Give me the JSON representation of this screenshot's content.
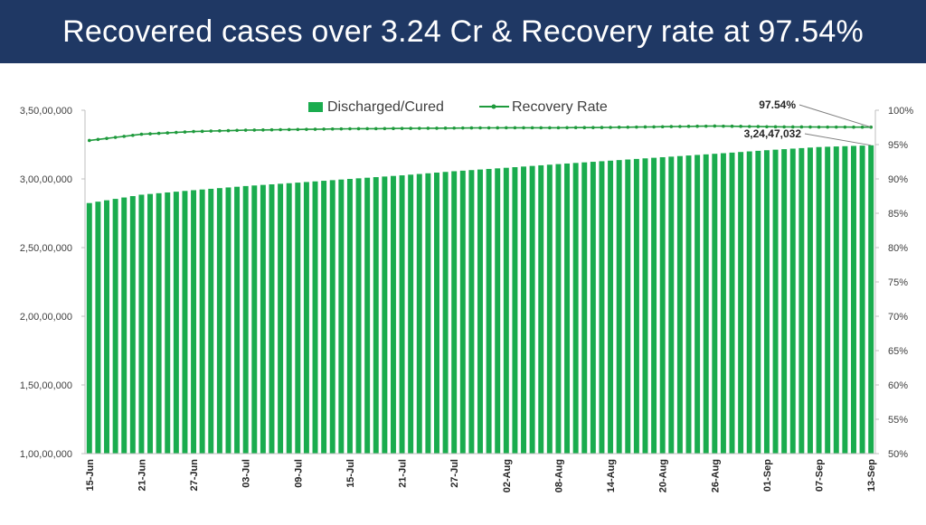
{
  "header": {
    "title": "Recovered cases over 3.24 Cr & Recovery rate at 97.54%",
    "background": "#1f3864"
  },
  "chart_data": {
    "type": "bar",
    "title": "",
    "xlabel": "",
    "ylabel": "",
    "legend": {
      "placement": "top-center",
      "entries": [
        "Discharged/Cured",
        "Recovery Rate"
      ]
    },
    "bar_color": "#1aac4e",
    "line_color": "#1e9a3c",
    "grid": false,
    "y_left": {
      "range": [
        10000000,
        35000000
      ],
      "ticks": [
        10000000,
        15000000,
        20000000,
        25000000,
        30000000,
        35000000
      ],
      "tick_labels": [
        "1,00,00,000",
        "1,50,00,000",
        "2,00,00,000",
        "2,50,00,000",
        "3,00,00,000",
        "3,50,00,000"
      ]
    },
    "y_right": {
      "range": [
        50,
        100
      ],
      "ticks": [
        50,
        55,
        60,
        65,
        70,
        75,
        80,
        85,
        90,
        95,
        100
      ],
      "tick_labels": [
        "50%",
        "55%",
        "60%",
        "65%",
        "70%",
        "75%",
        "80%",
        "85%",
        "90%",
        "95%",
        "100%"
      ]
    },
    "x_tick_labels": [
      "15-Jun",
      "21-Jun",
      "27-Jun",
      "03-Jul",
      "09-Jul",
      "15-Jul",
      "21-Jul",
      "27-Jul",
      "02-Aug",
      "08-Aug",
      "14-Aug",
      "20-Aug",
      "26-Aug",
      "01-Sep",
      "07-Sep",
      "13-Sep"
    ],
    "x_tick_step_days": 6,
    "categories_range": [
      "15-Jun",
      "13-Sep"
    ],
    "series": [
      {
        "name": "Discharged/Cured",
        "type": "bar",
        "axis": "left",
        "values_at_ticks": [
          28243000,
          28850000,
          29180000,
          29480000,
          29730000,
          30000000,
          30260000,
          30560000,
          30810000,
          31080000,
          31330000,
          31580000,
          31830000,
          32090000,
          32320000,
          32447032
        ]
      },
      {
        "name": "Recovery Rate",
        "type": "line",
        "axis": "right",
        "values_at_ticks": [
          95.6,
          96.5,
          96.9,
          97.1,
          97.2,
          97.3,
          97.35,
          97.4,
          97.45,
          97.45,
          97.5,
          97.6,
          97.7,
          97.6,
          97.55,
          97.54
        ]
      }
    ],
    "annotations": [
      {
        "text": "97.54%",
        "target": "Recovery Rate last point"
      },
      {
        "text": "3,24,47,032",
        "target": "Discharged/Cured last bar"
      }
    ]
  }
}
